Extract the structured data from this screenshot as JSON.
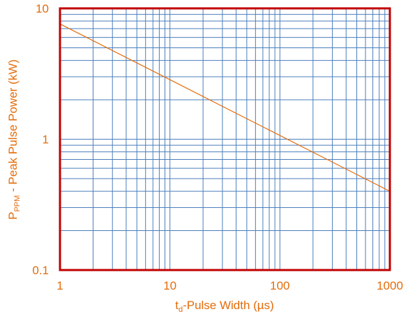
{
  "chart_data": {
    "type": "line",
    "title": "",
    "xlabel": {
      "t": "t",
      "sub": "d",
      "rest": "-Pulse Width (µs)"
    },
    "ylabel": {
      "p": "P",
      "sub": "PPM",
      "rest": " - Peak Pulse Power (kW)"
    },
    "x_scale": "log",
    "y_scale": "log",
    "xlim": [
      1,
      1000
    ],
    "ylim": [
      0.1,
      10
    ],
    "x_ticks": [
      {
        "value": 1,
        "label": "1"
      },
      {
        "value": 10,
        "label": "10"
      },
      {
        "value": 100,
        "label": "100"
      },
      {
        "value": 1000,
        "label": "1000"
      }
    ],
    "y_ticks": [
      {
        "value": 0.1,
        "label": "0.1"
      },
      {
        "value": 1,
        "label": "1"
      },
      {
        "value": 10,
        "label": "10"
      }
    ],
    "grid": true,
    "series": [
      {
        "x": [
          1,
          1000
        ],
        "y": [
          7.6,
          0.4
        ]
      }
    ]
  },
  "colors": {
    "frame": "#c00000",
    "grid": "#4a7ebb",
    "line": "#e36c0a",
    "text": "#e36c0a"
  }
}
